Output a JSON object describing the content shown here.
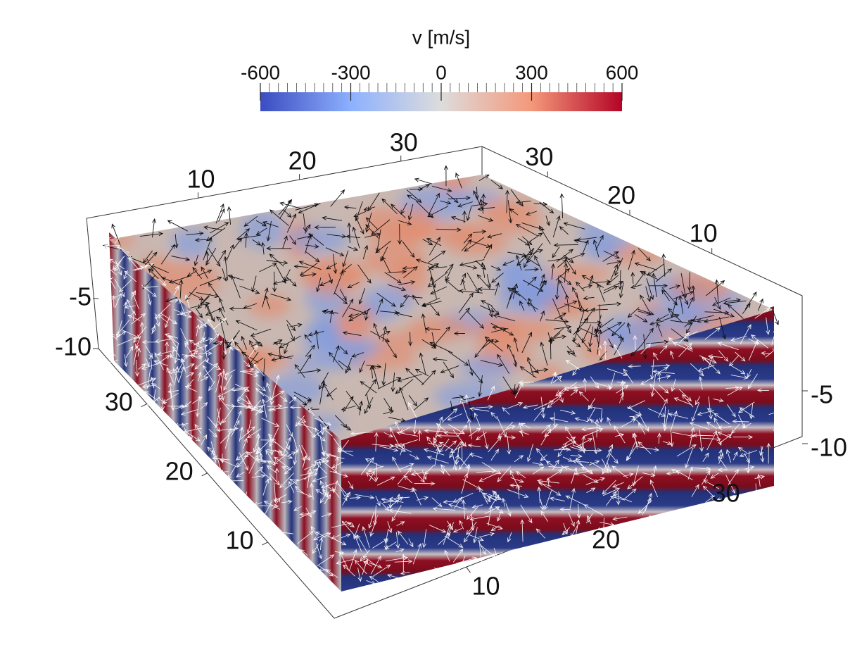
{
  "colorbar": {
    "title": "v [m/s]",
    "range": [
      -600,
      600
    ],
    "ticks": [
      -600,
      -300,
      0,
      300,
      600
    ]
  },
  "axes": {
    "top_back": {
      "range": [
        -1,
        38
      ],
      "ticks": [
        10,
        20,
        30
      ]
    },
    "right_back": {
      "range": [
        -1,
        38
      ],
      "ticks": [
        30,
        20,
        10
      ]
    },
    "front_left": {
      "range": [
        -1,
        38
      ],
      "ticks": [
        30,
        20,
        10
      ]
    },
    "front_right": {
      "range": [
        -1,
        38
      ],
      "ticks": [
        10,
        20,
        30
      ]
    },
    "left_vertical": {
      "range": [
        -10,
        3
      ],
      "ticks": [
        -5,
        -10
      ]
    },
    "right_vertical": {
      "range": [
        -10,
        3
      ],
      "ticks": [
        -5,
        -10
      ]
    }
  }
}
